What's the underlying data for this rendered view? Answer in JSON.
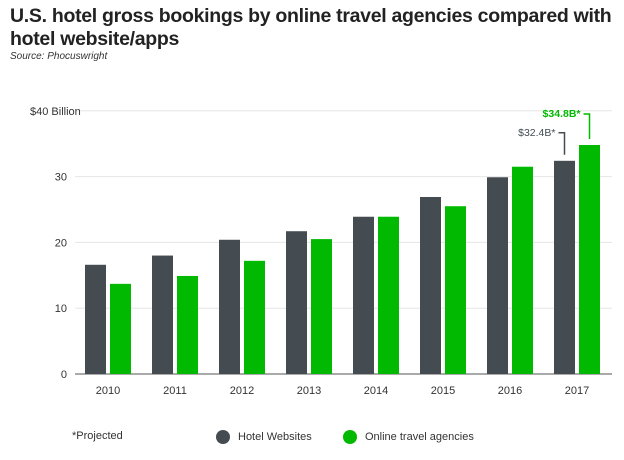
{
  "chart_data": {
    "type": "bar",
    "title": "U.S. hotel gross bookings by online travel agencies compared with hotel website/apps",
    "subtitle": "Source: Phocuswright",
    "categories": [
      "2010",
      "2011",
      "2012",
      "2013",
      "2014",
      "2015",
      "2016",
      "2017"
    ],
    "series": [
      {
        "name": "Hotel Websites",
        "color": "#444c52",
        "values": [
          16.6,
          18.0,
          20.4,
          21.7,
          23.9,
          26.9,
          29.9,
          32.4
        ]
      },
      {
        "name": "Online travel agencies",
        "color": "#00b900",
        "values": [
          13.7,
          14.9,
          17.2,
          20.5,
          23.9,
          25.5,
          31.5,
          34.8
        ]
      }
    ],
    "yticks": [
      {
        "v": 0,
        "label": "0"
      },
      {
        "v": 10,
        "label": "10"
      },
      {
        "v": 20,
        "label": "20"
      },
      {
        "v": 30,
        "label": "30"
      },
      {
        "v": 40,
        "label": "$40 Billion"
      }
    ],
    "ylim": [
      0,
      40
    ],
    "annotations": [
      {
        "series": 0,
        "index": 7,
        "text": "$32.4B*"
      },
      {
        "series": 1,
        "index": 7,
        "text": "$34.8B*"
      }
    ],
    "footnote": "*Projected",
    "legend_position": "bottom",
    "grid": true
  }
}
